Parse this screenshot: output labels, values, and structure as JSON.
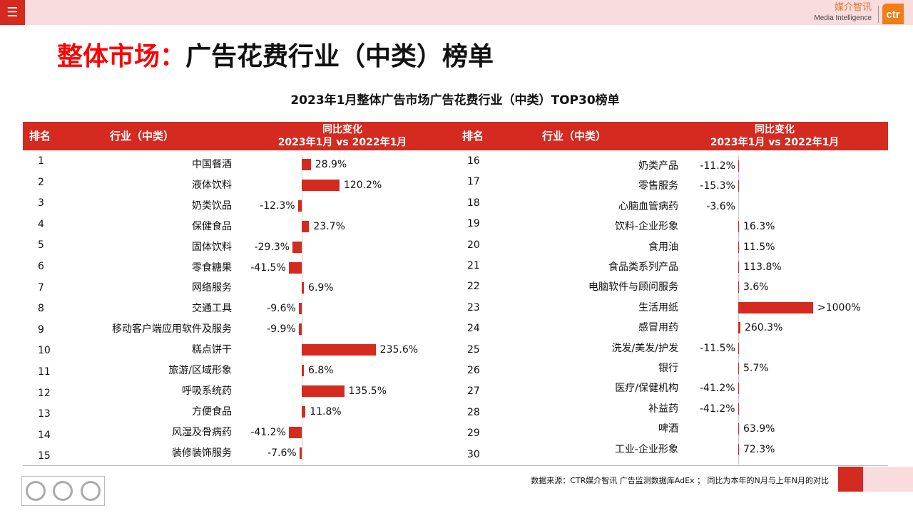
{
  "header": {
    "menu_icon": "hamburger-icon",
    "logo_cn": "媒介智讯",
    "logo_en": "Media Intelligence",
    "logo_mark": "ctr"
  },
  "title": {
    "highlight": "整体市场：",
    "rest": "广告花费行业（中类）榜单"
  },
  "subtitle": "2023年1月整体广告市场广告花费行业（中类）TOP30榜单",
  "table_header": {
    "rank": "排名",
    "industry": "行业（中类）",
    "change_line1": "同比变化",
    "change_line2": "2023年1月 vs 2022年1月"
  },
  "colors": {
    "accent": "#d42a20",
    "header_bg": "#f9dcdd"
  },
  "left_rows": [
    {
      "rank": "1",
      "name": "中国餐酒",
      "value": 28.9,
      "label": "28.9%"
    },
    {
      "rank": "2",
      "name": "液体饮料",
      "value": 120.2,
      "label": "120.2%"
    },
    {
      "rank": "3",
      "name": "奶类饮品",
      "value": -12.3,
      "label": "-12.3%"
    },
    {
      "rank": "4",
      "name": "保健食品",
      "value": 23.7,
      "label": "23.7%"
    },
    {
      "rank": "5",
      "name": "固体饮料",
      "value": -29.3,
      "label": "-29.3%"
    },
    {
      "rank": "6",
      "name": "零食糖果",
      "value": -41.5,
      "label": "-41.5%"
    },
    {
      "rank": "7",
      "name": "网络服务",
      "value": 6.9,
      "label": "6.9%"
    },
    {
      "rank": "8",
      "name": "交通工具",
      "value": -9.6,
      "label": "-9.6%"
    },
    {
      "rank": "9",
      "name": "移动客户端应用软件及服务",
      "value": -9.9,
      "label": "-9.9%"
    },
    {
      "rank": "10",
      "name": "糕点饼干",
      "value": 235.6,
      "label": "235.6%"
    },
    {
      "rank": "11",
      "name": "旅游/区域形象",
      "value": 6.8,
      "label": "6.8%"
    },
    {
      "rank": "12",
      "name": "呼吸系统药",
      "value": 135.5,
      "label": "135.5%"
    },
    {
      "rank": "13",
      "name": "方便食品",
      "value": 11.8,
      "label": "11.8%"
    },
    {
      "rank": "14",
      "name": "风湿及骨病药",
      "value": -41.2,
      "label": "-41.2%"
    },
    {
      "rank": "15",
      "name": "装修装饰服务",
      "value": -7.6,
      "label": "-7.6%"
    }
  ],
  "right_rows": [
    {
      "rank": "16",
      "name": "奶类产品",
      "value": -11.2,
      "label": "-11.2%"
    },
    {
      "rank": "17",
      "name": "零售服务",
      "value": -15.3,
      "label": "-15.3%"
    },
    {
      "rank": "18",
      "name": "心脑血管病药",
      "value": -3.6,
      "label": "-3.6%"
    },
    {
      "rank": "19",
      "name": "饮料-企业形象",
      "value": 16.3,
      "label": "16.3%"
    },
    {
      "rank": "20",
      "name": "食用油",
      "value": 11.5,
      "label": "11.5%"
    },
    {
      "rank": "21",
      "name": "食品类系列产品",
      "value": 113.8,
      "label": "113.8%"
    },
    {
      "rank": "22",
      "name": "电脑软件与顾问服务",
      "value": 3.6,
      "label": "3.6%"
    },
    {
      "rank": "23",
      "name": "生活用纸",
      "value": null,
      "label": ">1000%"
    },
    {
      "rank": "24",
      "name": "感冒用药",
      "value": 260.3,
      "label": "260.3%"
    },
    {
      "rank": "25",
      "name": "洗发/美发/护发",
      "value": -11.5,
      "label": "-11.5%"
    },
    {
      "rank": "26",
      "name": "银行",
      "value": 5.7,
      "label": "5.7%"
    },
    {
      "rank": "27",
      "name": "医疗/保健机构",
      "value": -41.2,
      "label": "-41.2%"
    },
    {
      "rank": "28",
      "name": "补益药",
      "value": -41.2,
      "label": "-41.2%"
    },
    {
      "rank": "29",
      "name": "啤酒",
      "value": 63.9,
      "label": "63.9%"
    },
    {
      "rank": "30",
      "name": "工业-企业形象",
      "value": 72.3,
      "label": "72.3%"
    }
  ],
  "footer": {
    "source": "数据来源：CTR媒介智讯 广告监测数据库AdEx ；  同比为本年的N月与上年N月的对比",
    "cert_logo": "SGS"
  }
}
